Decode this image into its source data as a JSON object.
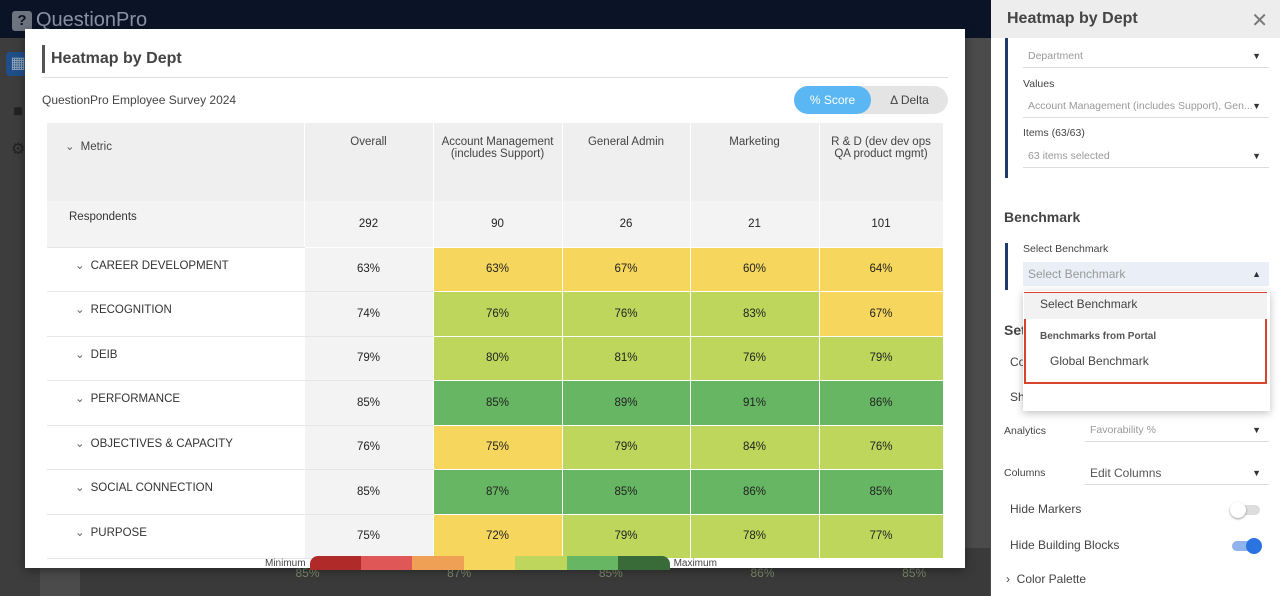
{
  "app": {
    "logo": "QuestionPro",
    "background_values": [
      "85%",
      "87%",
      "85%",
      "86%",
      "85%"
    ]
  },
  "modal": {
    "title": "Heatmap by Dept",
    "survey": "QuestionPro Employee Survey 2024",
    "toggle": {
      "score": "% Score",
      "delta": "Δ Delta",
      "active": "score"
    },
    "columns": [
      "Metric",
      "Overall",
      "Account Management (includes Support)",
      "General Admin",
      "Marketing",
      "R & D (dev dev ops QA product mgmt)"
    ],
    "respondents": {
      "label": "Respondents",
      "values": [
        "292",
        "90",
        "26",
        "21",
        "101"
      ]
    },
    "rows": [
      {
        "label": "CAREER DEVELOPMENT",
        "values": [
          "63%",
          "63%",
          "67%",
          "60%",
          "64%"
        ],
        "colors": [
          "",
          "#f6d65c",
          "#f6d65c",
          "#f6d65c",
          "#f6d65c"
        ]
      },
      {
        "label": "RECOGNITION",
        "values": [
          "74%",
          "76%",
          "76%",
          "83%",
          "67%"
        ],
        "colors": [
          "",
          "#bdd65b",
          "#bdd65b",
          "#bdd65b",
          "#f6d65c"
        ]
      },
      {
        "label": "DEIB",
        "values": [
          "79%",
          "80%",
          "81%",
          "76%",
          "79%"
        ],
        "colors": [
          "",
          "#bdd65b",
          "#bdd65b",
          "#bdd65b",
          "#bdd65b"
        ]
      },
      {
        "label": "PERFORMANCE",
        "values": [
          "85%",
          "85%",
          "89%",
          "91%",
          "86%"
        ],
        "colors": [
          "",
          "#66b663",
          "#66b663",
          "#66b663",
          "#66b663"
        ]
      },
      {
        "label": "OBJECTIVES & CAPACITY",
        "values": [
          "76%",
          "75%",
          "79%",
          "84%",
          "76%"
        ],
        "colors": [
          "",
          "#f6d65c",
          "#bdd65b",
          "#bdd65b",
          "#bdd65b"
        ]
      },
      {
        "label": "SOCIAL CONNECTION",
        "values": [
          "85%",
          "87%",
          "85%",
          "86%",
          "85%"
        ],
        "colors": [
          "",
          "#66b663",
          "#66b663",
          "#66b663",
          "#66b663"
        ]
      },
      {
        "label": "PURPOSE",
        "values": [
          "75%",
          "72%",
          "79%",
          "78%",
          "77%"
        ],
        "colors": [
          "",
          "#f6d65c",
          "#bdd65b",
          "#bdd65b",
          "#bdd65b"
        ]
      }
    ],
    "legend": {
      "min": "Minimum",
      "max": "Maximum",
      "colors": [
        "#b02a2a",
        "#e05757",
        "#f0a055",
        "#f6d65c",
        "#bdd65b",
        "#66b663",
        "#386b38"
      ]
    }
  },
  "panel": {
    "title": "Heatmap by Dept",
    "department": "Department",
    "values_label": "Values",
    "values_value": "Account Management (includes Support), Gen...",
    "items_label": "Items (63/63)",
    "items_value": "63 items selected",
    "benchmark_heading": "Benchmark",
    "select_benchmark_label": "Select Benchmark",
    "select_benchmark_value": "Select Benchmark",
    "dropdown": {
      "option_selected": "Select Benchmark",
      "group": "Benchmarks from Portal",
      "option": "Global Benchmark"
    },
    "settings_partial": "Set",
    "row_co": "Co",
    "row_sh": "Sh",
    "analytics_label": "Analytics",
    "analytics_value": "Favorability %",
    "columns_label": "Columns",
    "columns_value": "Edit Columns",
    "hide_markers": "Hide Markers",
    "hide_markers_on": false,
    "hide_blocks": "Hide Building Blocks",
    "hide_blocks_on": true,
    "color_palette": "Color Palette"
  }
}
